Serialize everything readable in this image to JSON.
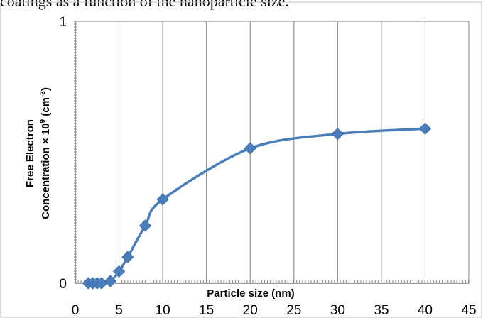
{
  "caption": "coatings as a function of the nanoparticle size.",
  "chart_data": {
    "type": "line",
    "title": "",
    "xlabel": "Particle size (nm)",
    "ylabel_line1": "Free Electron",
    "ylabel_line2_prefix": "Concentration × 10",
    "ylabel_exp1": "9",
    "ylabel_line2_mid": " (cm",
    "ylabel_exp2": "-3",
    "ylabel_line2_suffix": ")",
    "xlim": [
      0,
      45
    ],
    "ylim": [
      0,
      1
    ],
    "x_ticks": [
      "0",
      "5",
      "10",
      "15",
      "20",
      "25",
      "30",
      "35",
      "40",
      "45"
    ],
    "y_ticks": [
      "0",
      "1"
    ],
    "grid": "vertical",
    "series": [
      {
        "color": "#4a7ebb",
        "x": [
          1.5,
          2,
          2.5,
          3,
          4,
          5,
          6,
          8,
          10,
          20,
          30,
          40
        ],
        "y": [
          0,
          0,
          0,
          0,
          0.008,
          0.045,
          0.1,
          0.22,
          0.32,
          0.515,
          0.57,
          0.59
        ]
      }
    ]
  }
}
